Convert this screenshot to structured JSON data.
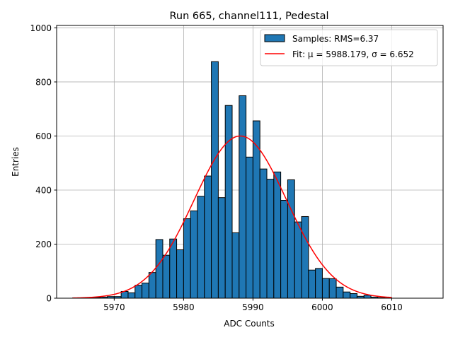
{
  "chart_data": {
    "type": "bar",
    "title": "Run 665, channel111, Pedestal",
    "xlabel": "ADC Counts",
    "ylabel": "Entries",
    "xlim": [
      5961.7,
      6017.4
    ],
    "ylim": [
      0,
      1009
    ],
    "grid": true,
    "legend_placement": "top-right",
    "xticks": [
      5970,
      5980,
      5990,
      6000,
      6010
    ],
    "xtick_labels": [
      "5970",
      "5980",
      "5990",
      "6000",
      "6010"
    ],
    "yticks": [
      0,
      200,
      400,
      600,
      800,
      1000
    ],
    "ytick_labels": [
      "0",
      "200",
      "400",
      "600",
      "800",
      "1000"
    ],
    "bin_width": 1,
    "bins_start": [
      5964,
      5965,
      5966,
      5967,
      5968,
      5969,
      5970,
      5971,
      5972,
      5973,
      5974,
      5975,
      5976,
      5977,
      5978,
      5979,
      5980,
      5981,
      5982,
      5983,
      5984,
      5985,
      5986,
      5987,
      5988,
      5989,
      5990,
      5991,
      5992,
      5993,
      5994,
      5995,
      5996,
      5997,
      5998,
      5999,
      6000,
      6001,
      6002,
      6003,
      6004,
      6005,
      6006,
      6007,
      6008,
      6009
    ],
    "values": [
      1,
      1,
      2,
      3,
      4,
      6,
      6,
      25,
      20,
      48,
      56,
      95,
      217,
      159,
      219,
      179,
      294,
      323,
      377,
      452,
      875,
      372,
      713,
      242,
      749,
      522,
      656,
      478,
      440,
      467,
      362,
      438,
      282,
      302,
      104,
      110,
      73,
      72,
      41,
      23,
      17,
      7,
      11,
      4,
      2,
      1
    ],
    "series": [
      {
        "name": "Samples: RMS=6.37",
        "type": "histogram",
        "color": "#1f77b4"
      },
      {
        "name": "Fit: μ = 5988.179, σ = 6.652",
        "type": "line",
        "color": "#ff0000",
        "mu": 5988.179,
        "sigma": 6.652,
        "amplitude": 600,
        "x_range": [
          5964,
          6010
        ]
      }
    ],
    "legend": [
      "Samples: RMS=6.37",
      "Fit: μ = 5988.179, σ = 6.652"
    ]
  }
}
